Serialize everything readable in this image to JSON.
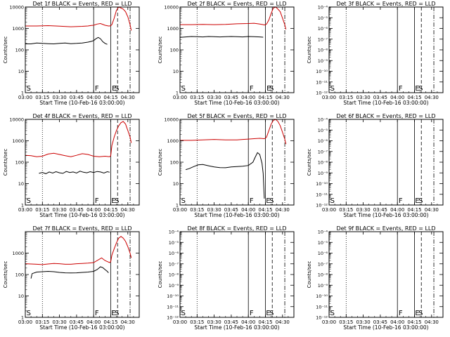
{
  "colors": {
    "events": "#000000",
    "lld": "#cc0000",
    "axes": "#000000",
    "background": "#ffffff"
  },
  "legend_note": "BLACK = Events, RED = LLD",
  "shared": {
    "xlabel": "Start Time (10-Feb-16 03:00:00)",
    "ylabel": "Counts/sec",
    "x_tick_labels": [
      "03:00",
      "03:15",
      "03:30",
      "03:45",
      "04:00",
      "04:15",
      "04:30"
    ],
    "x_tick_minutes": [
      0,
      15,
      30,
      45,
      60,
      75,
      90
    ],
    "xlim_minutes": [
      0,
      100
    ],
    "y_scale": "log"
  },
  "chart_data": [
    {
      "type": "line",
      "title": "Det 1f BLACK = Events, RED = LLD",
      "ylim": [
        1,
        10000
      ],
      "y_tick_labels": [
        "1",
        "10",
        "100",
        "1000",
        "10000"
      ],
      "markers": [
        {
          "label": "S",
          "minute": 1,
          "style": "none"
        },
        {
          "label": "F",
          "minute": 61,
          "style": "none"
        },
        {
          "label": "E",
          "minute": 76,
          "style": "none"
        },
        {
          "label": "S",
          "minute": 78.5,
          "style": "none"
        }
      ],
      "vlines": [
        {
          "minute": 15,
          "style": "dotted"
        },
        {
          "minute": 60,
          "style": "solid"
        },
        {
          "minute": 75,
          "style": "solid"
        },
        {
          "minute": 81,
          "style": "dashed"
        },
        {
          "minute": 92,
          "style": "dashdot"
        }
      ],
      "series": [
        {
          "key": "lld",
          "x": [
            0,
            10,
            20,
            30,
            40,
            50,
            55,
            58,
            60,
            63,
            66,
            70,
            73,
            74,
            75,
            76,
            78,
            80,
            82,
            84,
            86,
            88,
            90,
            92,
            93
          ],
          "y": [
            1300,
            1300,
            1350,
            1280,
            1200,
            1250,
            1300,
            1380,
            1400,
            1600,
            1700,
            1400,
            1300,
            1300,
            1350,
            1500,
            3000,
            7000,
            10000,
            9000,
            8000,
            6000,
            3500,
            1500,
            800
          ]
        },
        {
          "key": "events",
          "x": [
            0,
            5,
            10,
            15,
            20,
            25,
            30,
            35,
            40,
            45,
            50,
            55,
            58,
            60,
            62,
            64,
            66,
            68,
            70,
            72
          ],
          "y": [
            190,
            190,
            210,
            200,
            195,
            190,
            200,
            210,
            195,
            200,
            210,
            230,
            250,
            270,
            330,
            380,
            330,
            240,
            200,
            180
          ]
        }
      ]
    },
    {
      "type": "line",
      "title": "Det 2f BLACK = Events, RED = LLD",
      "ylim": [
        1,
        10000
      ],
      "y_tick_labels": [
        "1",
        "10",
        "100",
        "1000",
        "10000"
      ],
      "markers": [
        {
          "label": "S",
          "minute": 1,
          "style": "none"
        },
        {
          "label": "F",
          "minute": 61,
          "style": "none"
        },
        {
          "label": "E",
          "minute": 76,
          "style": "none"
        },
        {
          "label": "S",
          "minute": 78.5,
          "style": "none"
        }
      ],
      "vlines": [
        {
          "minute": 15,
          "style": "dotted"
        },
        {
          "minute": 60,
          "style": "solid"
        },
        {
          "minute": 75,
          "style": "solid"
        },
        {
          "minute": 81,
          "style": "dashed"
        },
        {
          "minute": 92,
          "style": "dashdot"
        }
      ],
      "series": [
        {
          "key": "lld",
          "x": [
            0,
            10,
            20,
            30,
            40,
            50,
            60,
            65,
            70,
            73,
            74,
            75,
            76,
            78,
            80,
            82,
            84,
            86,
            88,
            90,
            92,
            93
          ],
          "y": [
            1500,
            1500,
            1550,
            1500,
            1550,
            1650,
            1700,
            1750,
            1600,
            1500,
            1450,
            1500,
            1600,
            2500,
            5000,
            9000,
            10000,
            8000,
            6000,
            3000,
            1500,
            900
          ]
        },
        {
          "key": "events",
          "x": [
            0,
            5,
            10,
            15,
            20,
            25,
            30,
            35,
            40,
            45,
            50,
            55,
            60,
            65,
            70,
            73
          ],
          "y": [
            380,
            400,
            420,
            410,
            400,
            420,
            410,
            400,
            410,
            420,
            410,
            400,
            420,
            410,
            400,
            390
          ]
        }
      ]
    },
    {
      "type": "line",
      "title": "Det 3f BLACK = Events, RED = LLD",
      "ylim": [
        1e-12,
        0.0001
      ],
      "y_tick_labels": [
        "10⁻¹²",
        "10⁻¹¹",
        "10⁻¹⁰",
        "10⁻⁹",
        "10⁻⁸",
        "10⁻⁷",
        "10⁻⁶",
        "10⁻⁵",
        "10⁻⁴"
      ],
      "markers": [
        {
          "label": "S",
          "minute": 1,
          "style": "none"
        },
        {
          "label": "F",
          "minute": 61,
          "style": "none"
        },
        {
          "label": "E",
          "minute": 75.5,
          "style": "none"
        },
        {
          "label": "S",
          "minute": 78.5,
          "style": "none"
        }
      ],
      "vlines": [
        {
          "minute": 15,
          "style": "dotted"
        },
        {
          "minute": 60,
          "style": "solid"
        },
        {
          "minute": 75,
          "style": "solid"
        },
        {
          "minute": 81,
          "style": "dashed"
        },
        {
          "minute": 92,
          "style": "dashdot"
        }
      ],
      "series": []
    },
    {
      "type": "line",
      "title": "Det 4f BLACK = Events, RED = LLD",
      "ylim": [
        1,
        10000
      ],
      "y_tick_labels": [
        "1",
        "10",
        "100",
        "1000",
        "10000"
      ],
      "markers": [
        {
          "label": "S",
          "minute": 1,
          "style": "none"
        },
        {
          "label": "F",
          "minute": 61,
          "style": "none"
        },
        {
          "label": "E",
          "minute": 75.5,
          "style": "none"
        },
        {
          "label": "S",
          "minute": 78.5,
          "style": "none"
        }
      ],
      "vlines": [
        {
          "minute": 15,
          "style": "dotted"
        },
        {
          "minute": 60,
          "style": "solid"
        },
        {
          "minute": 75,
          "style": "solid"
        },
        {
          "minute": 81,
          "style": "dashed"
        },
        {
          "minute": 92,
          "style": "dashdot"
        }
      ],
      "series": [
        {
          "key": "lld",
          "x": [
            0,
            5,
            10,
            15,
            20,
            25,
            30,
            35,
            40,
            45,
            50,
            55,
            60,
            65,
            70,
            74,
            75,
            76,
            78,
            80,
            82,
            84,
            86,
            88,
            90,
            92,
            93
          ],
          "y": [
            210,
            200,
            180,
            190,
            240,
            260,
            230,
            200,
            180,
            210,
            250,
            230,
            190,
            180,
            190,
            180,
            200,
            600,
            1500,
            3000,
            5000,
            7000,
            8000,
            6000,
            3000,
            1500,
            800
          ]
        },
        {
          "key": "events",
          "x": [
            12,
            15,
            18,
            21,
            24,
            27,
            30,
            33,
            36,
            39,
            42,
            45,
            48,
            51,
            54,
            57,
            60,
            63,
            66,
            69,
            72,
            74
          ],
          "y": [
            30,
            33,
            29,
            35,
            31,
            36,
            32,
            30,
            37,
            33,
            35,
            31,
            38,
            34,
            32,
            36,
            33,
            37,
            35,
            31,
            36,
            34
          ]
        }
      ]
    },
    {
      "type": "line",
      "title": "Det 5f BLACK = Events, RED = LLD",
      "ylim": [
        1,
        10000
      ],
      "y_tick_labels": [
        "1",
        "10",
        "100",
        "1000",
        "10000"
      ],
      "markers": [
        {
          "label": "S",
          "minute": 1,
          "style": "none"
        },
        {
          "label": "F",
          "minute": 61,
          "style": "none"
        },
        {
          "label": "E",
          "minute": 75.5,
          "style": "none"
        },
        {
          "label": "S",
          "minute": 78.5,
          "style": "none"
        }
      ],
      "vlines": [
        {
          "minute": 15,
          "style": "dotted"
        },
        {
          "minute": 60,
          "style": "solid"
        },
        {
          "minute": 75,
          "style": "solid"
        },
        {
          "minute": 81,
          "style": "dashed"
        },
        {
          "minute": 92,
          "style": "dashdot"
        }
      ],
      "series": [
        {
          "key": "lld",
          "x": [
            0,
            10,
            20,
            30,
            40,
            50,
            55,
            60,
            65,
            70,
            74,
            75,
            76,
            78,
            80,
            82,
            84,
            86,
            88,
            90,
            92,
            93
          ],
          "y": [
            1050,
            1050,
            1100,
            1150,
            1100,
            1100,
            1150,
            1200,
            1250,
            1300,
            1250,
            1300,
            1500,
            3000,
            6000,
            9000,
            10000,
            8000,
            5000,
            2500,
            1200,
            700
          ]
        },
        {
          "key": "events",
          "x": [
            5,
            8,
            12,
            16,
            20,
            25,
            30,
            35,
            40,
            45,
            50,
            55,
            60,
            64,
            66,
            68,
            70,
            72,
            73,
            74
          ],
          "y": [
            45,
            50,
            62,
            75,
            78,
            68,
            60,
            56,
            55,
            60,
            62,
            65,
            70,
            100,
            170,
            280,
            230,
            90,
            30,
            2
          ]
        }
      ]
    },
    {
      "type": "line",
      "title": "Det 6f BLACK = Events, RED = LLD",
      "ylim": [
        1e-12,
        0.0001
      ],
      "y_tick_labels": [
        "10⁻¹²",
        "10⁻¹¹",
        "10⁻¹⁰",
        "10⁻⁹",
        "10⁻⁸",
        "10⁻⁷",
        "10⁻⁶",
        "10⁻⁵",
        "10⁻⁴"
      ],
      "markers": [
        {
          "label": "S",
          "minute": 1,
          "style": "none"
        },
        {
          "label": "F",
          "minute": 61,
          "style": "none"
        },
        {
          "label": "E",
          "minute": 75.5,
          "style": "none"
        },
        {
          "label": "S",
          "minute": 78.5,
          "style": "none"
        }
      ],
      "vlines": [
        {
          "minute": 15,
          "style": "dotted"
        },
        {
          "minute": 60,
          "style": "solid"
        },
        {
          "minute": 75,
          "style": "solid"
        },
        {
          "minute": 81,
          "style": "dashed"
        },
        {
          "minute": 92,
          "style": "dashdot"
        }
      ],
      "series": []
    },
    {
      "type": "line",
      "title": "Det 7f BLACK = Events, RED = LLD",
      "ylim": [
        1,
        10000
      ],
      "y_tick_labels": [
        "1",
        "10",
        "100",
        "1000"
      ],
      "markers": [
        {
          "label": "S",
          "minute": 1,
          "style": "none"
        },
        {
          "label": "F",
          "minute": 61,
          "style": "none"
        },
        {
          "label": "E",
          "minute": 75.5,
          "style": "none"
        },
        {
          "label": "S",
          "minute": 78.5,
          "style": "none"
        }
      ],
      "vlines": [
        {
          "minute": 15,
          "style": "dotted"
        },
        {
          "minute": 60,
          "style": "solid"
        },
        {
          "minute": 75,
          "style": "solid"
        },
        {
          "minute": 81,
          "style": "dashed"
        },
        {
          "minute": 92,
          "style": "dashdot"
        }
      ],
      "series": [
        {
          "key": "lld",
          "x": [
            0,
            5,
            10,
            15,
            20,
            25,
            30,
            35,
            40,
            45,
            50,
            55,
            60,
            64,
            67,
            70,
            73,
            74,
            75,
            76,
            78,
            80,
            82,
            84,
            86,
            88,
            90,
            92,
            93
          ],
          "y": [
            320,
            310,
            300,
            290,
            310,
            330,
            320,
            300,
            300,
            320,
            330,
            340,
            360,
            480,
            600,
            450,
            380,
            360,
            400,
            800,
            1600,
            3000,
            5000,
            6000,
            5000,
            3500,
            2000,
            1000,
            600
          ]
        },
        {
          "key": "events",
          "x": [
            5,
            6,
            10,
            15,
            20,
            25,
            30,
            35,
            40,
            45,
            50,
            55,
            60,
            63,
            66,
            68,
            70,
            72,
            73
          ],
          "y": [
            65,
            110,
            130,
            135,
            140,
            135,
            125,
            120,
            118,
            120,
            125,
            130,
            140,
            170,
            230,
            210,
            170,
            140,
            120
          ]
        }
      ]
    },
    {
      "type": "line",
      "title": "Det 8f BLACK = Events, RED = LLD",
      "ylim": [
        1e-12,
        0.0001
      ],
      "y_tick_labels": [
        "10⁻¹²",
        "10⁻¹¹",
        "10⁻¹⁰",
        "10⁻⁹",
        "10⁻⁸",
        "10⁻⁷",
        "10⁻⁶",
        "10⁻⁵",
        "10⁻⁴"
      ],
      "markers": [
        {
          "label": "S",
          "minute": 1,
          "style": "none"
        },
        {
          "label": "F",
          "minute": 61,
          "style": "none"
        },
        {
          "label": "E",
          "minute": 75.5,
          "style": "none"
        },
        {
          "label": "S",
          "minute": 78.5,
          "style": "none"
        }
      ],
      "vlines": [
        {
          "minute": 15,
          "style": "dotted"
        },
        {
          "minute": 60,
          "style": "solid"
        },
        {
          "minute": 75,
          "style": "solid"
        },
        {
          "minute": 81,
          "style": "dashed"
        },
        {
          "minute": 92,
          "style": "dashdot"
        }
      ],
      "series": []
    },
    {
      "type": "line",
      "title": "Det 9f BLACK = Events, RED = LLD",
      "ylim": [
        1e-12,
        0.0001
      ],
      "y_tick_labels": [
        "10⁻¹²",
        "10⁻¹¹",
        "10⁻¹⁰",
        "10⁻⁹",
        "10⁻⁸",
        "10⁻⁷",
        "10⁻⁶",
        "10⁻⁵",
        "10⁻⁴"
      ],
      "markers": [
        {
          "label": "S",
          "minute": 1,
          "style": "none"
        },
        {
          "label": "F",
          "minute": 61,
          "style": "none"
        },
        {
          "label": "E",
          "minute": 75.5,
          "style": "none"
        },
        {
          "label": "S",
          "minute": 78.5,
          "style": "none"
        }
      ],
      "vlines": [
        {
          "minute": 15,
          "style": "dotted"
        },
        {
          "minute": 60,
          "style": "solid"
        },
        {
          "minute": 75,
          "style": "solid"
        },
        {
          "minute": 81,
          "style": "dashed"
        },
        {
          "minute": 92,
          "style": "dashdot"
        }
      ],
      "series": []
    }
  ]
}
